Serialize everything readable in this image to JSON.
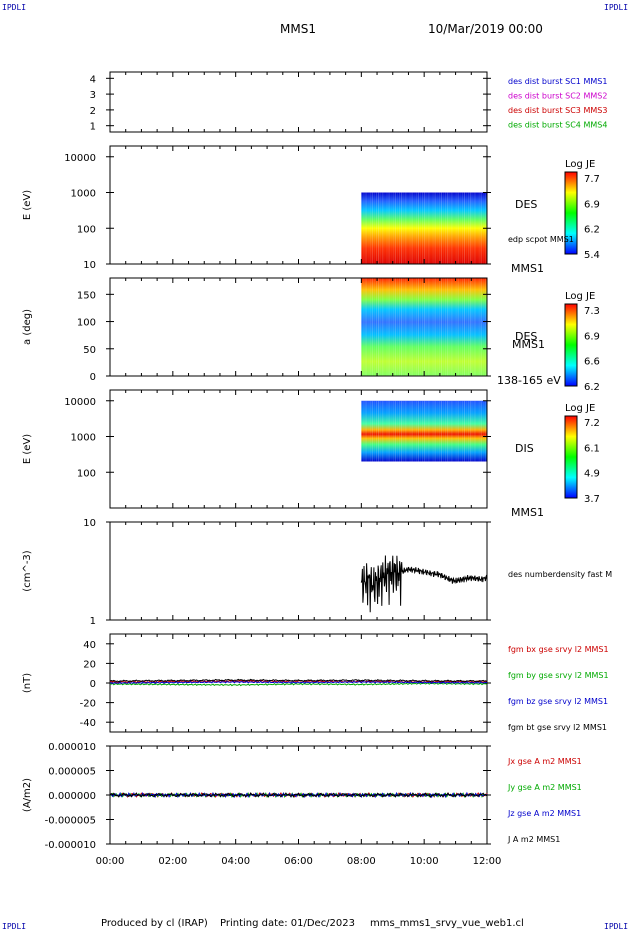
{
  "corner": {
    "tl": "IPDLI",
    "tr": "IPDLI",
    "bl": "IPDLI",
    "br": "IPDLI"
  },
  "header": {
    "spacecraft": "MMS1",
    "date": "10/Mar/2019 00:00"
  },
  "footer": {
    "producer": "Produced by cl (IRAP)",
    "print_date": "Printing date: 01/Dec/2023",
    "file": "mms_mms1_srvy_vue_web1.cl"
  },
  "chart_data": [
    {
      "id": "p1",
      "type": "line",
      "yticks": [
        "4",
        "3",
        "2",
        "1"
      ],
      "ylim": [
        0.6,
        4.4
      ],
      "series": [],
      "legend": [
        {
          "label": "des dist burst SC1 MMS1",
          "color": "#0000cc"
        },
        {
          "label": "des dist burst SC2 MMS2",
          "color": "#cc00cc"
        },
        {
          "label": "des dist burst SC3 MMS3",
          "color": "#cc0000"
        },
        {
          "label": "des dist burst SC4 MMS4",
          "color": "#00aa00"
        }
      ]
    },
    {
      "id": "p2",
      "type": "heatmap",
      "ylabel": "E (eV)",
      "yscale": "log",
      "ylim": [
        10,
        20000
      ],
      "yticks": [
        "10000",
        "1000",
        "100",
        "10"
      ],
      "data_start": "08:00",
      "data_end": "12:00",
      "side_label": "DES",
      "side_label2": "edp scpot MMS1",
      "bottom_right": "MMS1",
      "colorbar": {
        "title": "Log JE",
        "ticks": [
          "7.7",
          "6.9",
          "6.2",
          "5.4"
        ]
      }
    },
    {
      "id": "p3",
      "type": "heatmap",
      "ylabel": "a (deg)",
      "ylim": [
        0,
        180
      ],
      "yticks": [
        "150",
        "100",
        "50",
        "0"
      ],
      "data_start": "08:00",
      "data_end": "12:00",
      "side_label": "DES",
      "side_label2": "MMS1",
      "bottom_right": "138-165 eV",
      "colorbar": {
        "title": "Log JE",
        "ticks": [
          "7.3",
          "6.9",
          "6.6",
          "6.2"
        ]
      }
    },
    {
      "id": "p4",
      "type": "heatmap",
      "ylabel": "E (eV)",
      "yscale": "log",
      "ylim": [
        10,
        20000
      ],
      "yticks": [
        "10000",
        "1000",
        "100"
      ],
      "data_start": "08:00",
      "data_end": "12:00",
      "side_label": "DIS",
      "bottom_right": "MMS1",
      "colorbar": {
        "title": "Log JE",
        "ticks": [
          "7.2",
          "6.1",
          "4.9",
          "3.7"
        ]
      }
    },
    {
      "id": "p5",
      "type": "line",
      "ylabel": "(cm^-3)",
      "yscale": "log",
      "ylim": [
        1,
        10
      ],
      "yticks": [
        "10",
        "1"
      ],
      "side_label": "des numberdensity fast M",
      "series": [
        {
          "color": "#000000",
          "x": [
            8.0,
            8.2,
            8.4,
            8.6,
            8.8,
            9.0,
            9.2,
            9.5,
            9.8,
            10.0,
            10.2,
            10.5,
            10.8,
            11.0,
            11.2,
            11.5,
            11.8,
            12.0
          ],
          "y": [
            2.4,
            2.6,
            2.3,
            2.7,
            3.0,
            3.1,
            3.0,
            3.3,
            3.2,
            3.1,
            3.0,
            2.9,
            2.6,
            2.5,
            2.6,
            2.7,
            2.6,
            2.7
          ]
        }
      ]
    },
    {
      "id": "p6",
      "type": "line",
      "ylabel": "(nT)",
      "ylim": [
        -50,
        50
      ],
      "yticks": [
        "40",
        "20",
        "0",
        "-20",
        "-40"
      ],
      "series": [
        {
          "name": "fgm bx gse srvy l2 MMS1",
          "color": "#cc0000",
          "x": [
            0,
            2,
            4,
            6,
            8,
            10,
            12
          ],
          "y": [
            1,
            1.5,
            2,
            1.8,
            1.5,
            1.2,
            1.5
          ]
        },
        {
          "name": "fgm by gse srvy l2 MMS1",
          "color": "#00aa00",
          "x": [
            0,
            2,
            4,
            6,
            8,
            10,
            12
          ],
          "y": [
            -1,
            -1.5,
            -2,
            -1,
            -1.5,
            -0.5,
            -1
          ]
        },
        {
          "name": "fgm bz gse srvy l2 MMS1",
          "color": "#0000cc",
          "x": [
            0,
            2,
            4,
            6,
            8,
            10,
            12
          ],
          "y": [
            0,
            0.5,
            1,
            0.5,
            1,
            0.5,
            0.3
          ]
        },
        {
          "name": "fgm bt gse srvy l2 MMS1",
          "color": "#000000",
          "x": [
            0,
            2,
            4,
            6,
            8,
            10,
            12
          ],
          "y": [
            2,
            2.5,
            3,
            2.5,
            2.8,
            2.2,
            2
          ]
        }
      ]
    },
    {
      "id": "p7",
      "type": "line",
      "ylabel": "(A/m2)",
      "ylim": [
        -1e-05,
        1e-05
      ],
      "yticks": [
        "0.000010",
        "0.000005",
        "0.000000",
        "-0.000005",
        "-0.000010"
      ],
      "xticks": [
        "00:00",
        "02:00",
        "04:00",
        "06:00",
        "08:00",
        "10:00",
        "12:00"
      ],
      "series": [
        {
          "name": "Jx gse A m2 MMS1",
          "color": "#cc0000",
          "x": [
            0,
            12
          ],
          "y": [
            0,
            0
          ]
        },
        {
          "name": "Jy gse A m2 MMS1",
          "color": "#00aa00",
          "x": [
            0,
            12
          ],
          "y": [
            0,
            0
          ]
        },
        {
          "name": "Jz gse A m2 MMS1",
          "color": "#0000cc",
          "x": [
            0,
            12
          ],
          "y": [
            0,
            0
          ]
        },
        {
          "name": "J A m2 MMS1",
          "color": "#000000",
          "x": [
            0,
            12
          ],
          "y": [
            0,
            0
          ]
        }
      ]
    }
  ]
}
